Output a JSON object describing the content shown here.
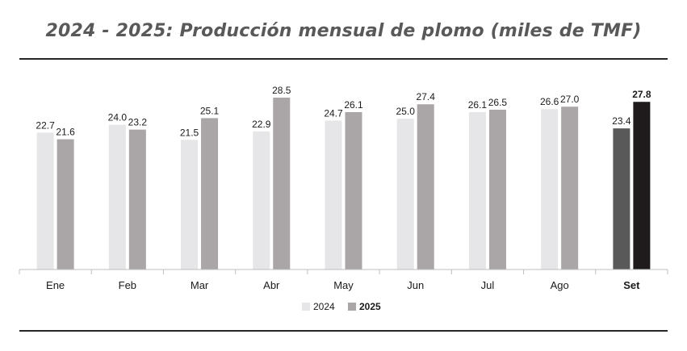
{
  "chart_data": {
    "type": "bar",
    "title": "2024 - 2025: Producción mensual de plomo (miles de TMF)",
    "categories": [
      "Ene",
      "Feb",
      "Mar",
      "Abr",
      "May",
      "Jun",
      "Jul",
      "Ago",
      "Set"
    ],
    "highlight_category": "Set",
    "series": [
      {
        "name": "2024",
        "values": [
          22.7,
          24.0,
          21.5,
          22.9,
          24.7,
          25.0,
          26.1,
          26.6,
          23.4
        ],
        "color": "#e6e6e8",
        "highlight_color": "#595959"
      },
      {
        "name": "2025",
        "values": [
          21.6,
          23.2,
          25.1,
          28.5,
          26.1,
          27.4,
          26.5,
          27.0,
          27.8
        ],
        "color": "#aaa5a6",
        "highlight_color": "#1f1b1c"
      }
    ],
    "legend": {
      "position": "bottom",
      "items": [
        "2024",
        "2025"
      ],
      "bold_item": "2025"
    },
    "ylim": [
      0,
      30
    ],
    "grid": false,
    "xlabel": "",
    "ylabel": ""
  }
}
